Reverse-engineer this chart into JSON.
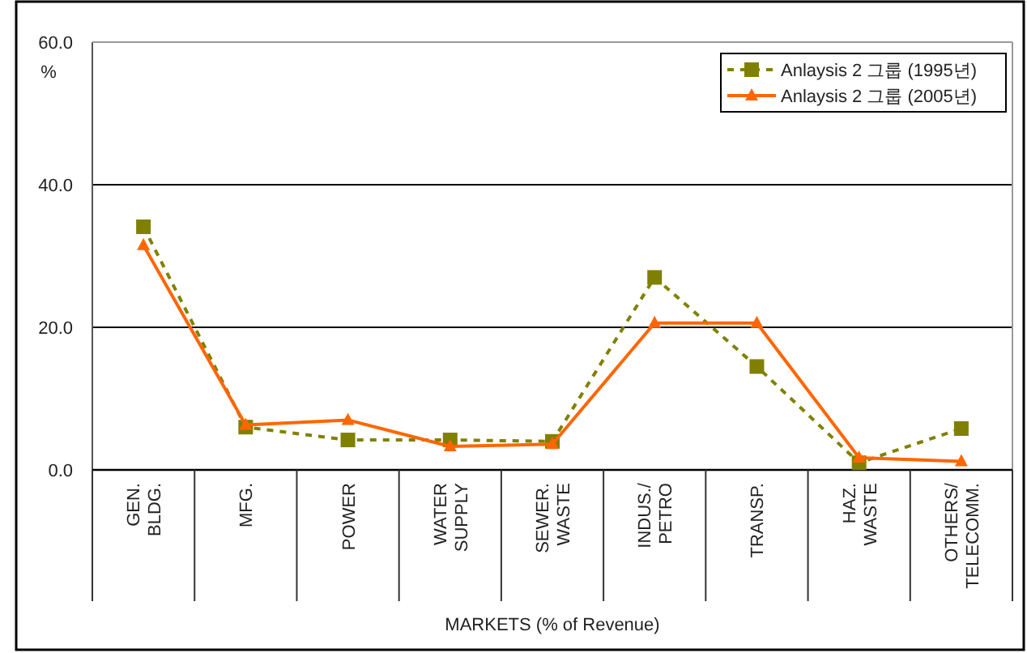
{
  "chart_data": {
    "type": "line",
    "xlabel": "MARKETS (% of Revenue)",
    "ylabel": "%",
    "categories": [
      "GEN. BLDG.",
      "MFG.",
      "POWER",
      "WATER SUPPLY",
      "SEWER. WASTE",
      "INDUS./ PETRO",
      "TRANSP.",
      "HAZ. WASTE",
      "OTHERS/ TELECOMM."
    ],
    "series": [
      {
        "name": "Anlaysis 2 그룹 (1995년)",
        "color": "#808000",
        "marker": "square",
        "line_style": "dashed",
        "values": [
          34.1,
          6.0,
          4.2,
          4.2,
          4.0,
          27.0,
          14.5,
          1.0,
          5.8
        ]
      },
      {
        "name": "Anlaysis 2 그룹 (2005년)",
        "color": "#ff6600",
        "marker": "triangle",
        "line_style": "solid",
        "values": [
          31.5,
          6.3,
          7.0,
          3.3,
          3.6,
          20.6,
          20.6,
          1.7,
          1.2
        ]
      }
    ],
    "ylim": [
      0,
      60
    ],
    "yticks": [
      {
        "value": 0,
        "label": "0.0"
      },
      {
        "value": 20,
        "label": "20.0"
      },
      {
        "value": 40,
        "label": "40.0"
      },
      {
        "value": 60,
        "label": "60.0"
      }
    ],
    "grid": "y",
    "legend": "top right"
  }
}
